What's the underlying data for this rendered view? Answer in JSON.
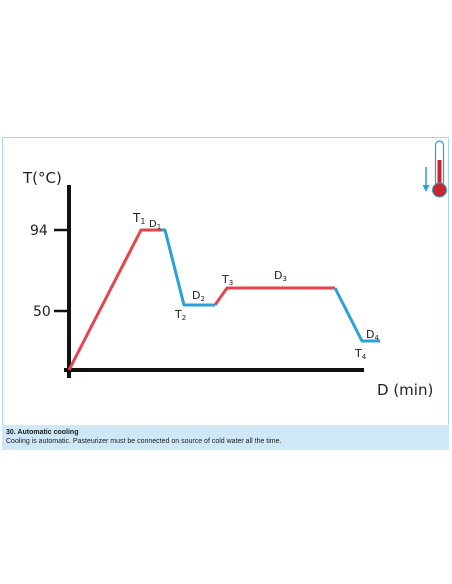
{
  "diagram": {
    "y_axis_label": "T(°C)",
    "x_axis_label": "D (min)",
    "y_ticks": [
      "94",
      "50"
    ],
    "points": [
      {
        "name": "T",
        "sub": "1"
      },
      {
        "name": "D",
        "sub": "1"
      },
      {
        "name": "D",
        "sub": "2"
      },
      {
        "name": "T",
        "sub": "2"
      },
      {
        "name": "T",
        "sub": "3"
      },
      {
        "name": "D",
        "sub": "3"
      },
      {
        "name": "D",
        "sub": "4"
      },
      {
        "name": "T",
        "sub": "4"
      }
    ],
    "colors": {
      "heating": "#e8434a",
      "cooling": "#2a9fd8",
      "axis": "#111111",
      "thermometer": "#c8262e",
      "caption_bg": "#cfe8f7"
    },
    "icons": [
      "thermometer-icon",
      "arrow-down-icon"
    ]
  },
  "caption": {
    "title": "30. Automatic cooling",
    "text": "Cooling is automatic. Pasteurizer must be connected on source of cold water all the time."
  }
}
